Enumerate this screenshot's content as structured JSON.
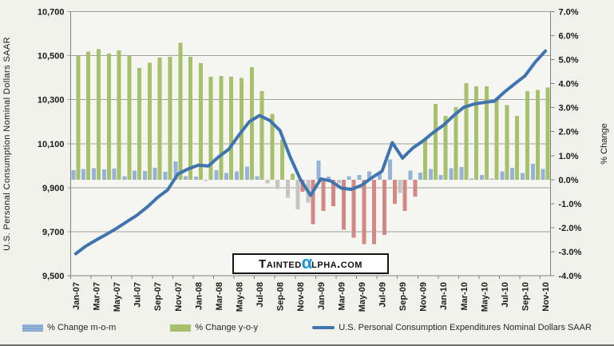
{
  "colors": {
    "background": "#F1F1EC",
    "plot_background": "#F5F5F1",
    "grid": "#A0A0A0",
    "axis": "#7F7F7F",
    "tick_text": "#1A1A1A",
    "mom_positive": "#95B3D7",
    "mom_negative": "#C4C4C4",
    "yoy_positive": "#A6C06B",
    "yoy_negative": "#D28885",
    "line": "#3F74B0",
    "watermark_alpha": "#1E95D4"
  },
  "watermark": {
    "text_before_alpha": "Tainted",
    "alpha": "α",
    "text_after_alpha": "lpha.com"
  },
  "legend": {
    "items": [
      {
        "label": "% Change m-o-m",
        "swatch": "bar-blue-striped"
      },
      {
        "label": "% Change y-o-y",
        "swatch": "bar-green"
      },
      {
        "label": "U.S. Personal Consumption Expenditures Nominal Dollars SAAR",
        "swatch": "line-blue"
      }
    ]
  },
  "chart_data": {
    "type": "combo-bar-line",
    "grid": "horizontal",
    "legend_position": "bottom",
    "left_axis": {
      "title": "U.S. Personal Consumption Nominal Dollars SAAR",
      "min": 9500,
      "max": 10700,
      "tick_step": 200,
      "tick_values": [
        9500,
        9700,
        9900,
        10100,
        10300,
        10500,
        10700
      ],
      "tick_labels": [
        "9,500",
        "9,700",
        "9,900",
        "10,100",
        "10,300",
        "10,500",
        "10,700"
      ]
    },
    "right_axis": {
      "title": "% Change",
      "min": -4.0,
      "max": 7.0,
      "tick_step": 1.0,
      "tick_values": [
        -4,
        -3,
        -2,
        -1,
        0,
        1,
        2,
        3,
        4,
        5,
        6,
        7
      ],
      "tick_labels": [
        "-4.0%",
        "-3.0%",
        "-2.0%",
        "-1.0%",
        "0.0%",
        "1.0%",
        "2.0%",
        "3.0%",
        "4.0%",
        "5.0%",
        "6.0%",
        "7.0%"
      ]
    },
    "x_label_every": 2,
    "categories": [
      "Jan-07",
      "Feb-07",
      "Mar-07",
      "Apr-07",
      "May-07",
      "Jun-07",
      "Jul-07",
      "Aug-07",
      "Sep-07",
      "Oct-07",
      "Nov-07",
      "Dec-07",
      "Jan-08",
      "Feb-08",
      "Mar-08",
      "Apr-08",
      "May-08",
      "Jun-08",
      "Jul-08",
      "Aug-08",
      "Sep-08",
      "Oct-08",
      "Nov-08",
      "Dec-08",
      "Jan-09",
      "Feb-09",
      "Mar-09",
      "Apr-09",
      "May-09",
      "Jun-09",
      "Jul-09",
      "Aug-09",
      "Sep-09",
      "Oct-09",
      "Nov-09",
      "Dec-09",
      "Jan-10",
      "Feb-10",
      "Mar-10",
      "Apr-10",
      "May-10",
      "Jun-10",
      "Jul-10",
      "Aug-10",
      "Sep-10",
      "Oct-10",
      "Nov-10"
    ],
    "series": [
      {
        "name": "% Change m-o-m",
        "type": "bar",
        "axis": "right",
        "unit": "%",
        "values": [
          0.4,
          0.45,
          0.48,
          0.42,
          0.46,
          0.15,
          0.38,
          0.36,
          0.5,
          0.32,
          0.76,
          0.15,
          0.12,
          -0.06,
          0.4,
          0.28,
          0.35,
          0.54,
          0.15,
          -0.15,
          -0.39,
          -0.76,
          -1.23,
          -0.95,
          0.79,
          0.13,
          -0.15,
          0.15,
          0.2,
          0.35,
          0.3,
          0.85,
          -0.55,
          0.38,
          0.3,
          0.44,
          0.2,
          0.48,
          0.52,
          0.05,
          0.19,
          0.04,
          0.35,
          0.49,
          0.27,
          0.66,
          0.44
        ]
      },
      {
        "name": "% Change y-o-y",
        "type": "bar",
        "axis": "right",
        "unit": "%",
        "values": [
          5.17,
          5.34,
          5.43,
          5.26,
          5.39,
          5.17,
          4.65,
          4.87,
          5.09,
          5.12,
          5.7,
          5.12,
          4.85,
          4.28,
          4.32,
          4.28,
          4.24,
          4.68,
          3.69,
          2.74,
          1.66,
          0.25,
          -0.5,
          -1.85,
          -1.31,
          -1.11,
          -2.09,
          -2.42,
          -2.69,
          -2.69,
          -2.31,
          -1.0,
          -1.31,
          -0.7,
          1.66,
          3.16,
          2.66,
          3.02,
          4.02,
          3.88,
          3.88,
          3.4,
          3.1,
          2.66,
          3.69,
          3.74,
          3.84
        ]
      },
      {
        "name": "U.S. Personal Consumption Expenditures Nominal Dollars SAAR",
        "type": "line",
        "axis": "left",
        "unit": "$B SAAR",
        "values": [
          9600,
          9635,
          9662,
          9688,
          9715,
          9745,
          9775,
          9812,
          9855,
          9890,
          9962,
          9985,
          10002,
          9998,
          10040,
          10075,
          10140,
          10200,
          10228,
          10205,
          10160,
          10040,
          9938,
          9865,
          9940,
          9930,
          9898,
          9892,
          9911,
          9945,
          9975,
          10105,
          10034,
          10080,
          10112,
          10150,
          10183,
          10227,
          10265,
          10280,
          10287,
          10293,
          10335,
          10372,
          10408,
          10470,
          10521
        ]
      }
    ]
  }
}
